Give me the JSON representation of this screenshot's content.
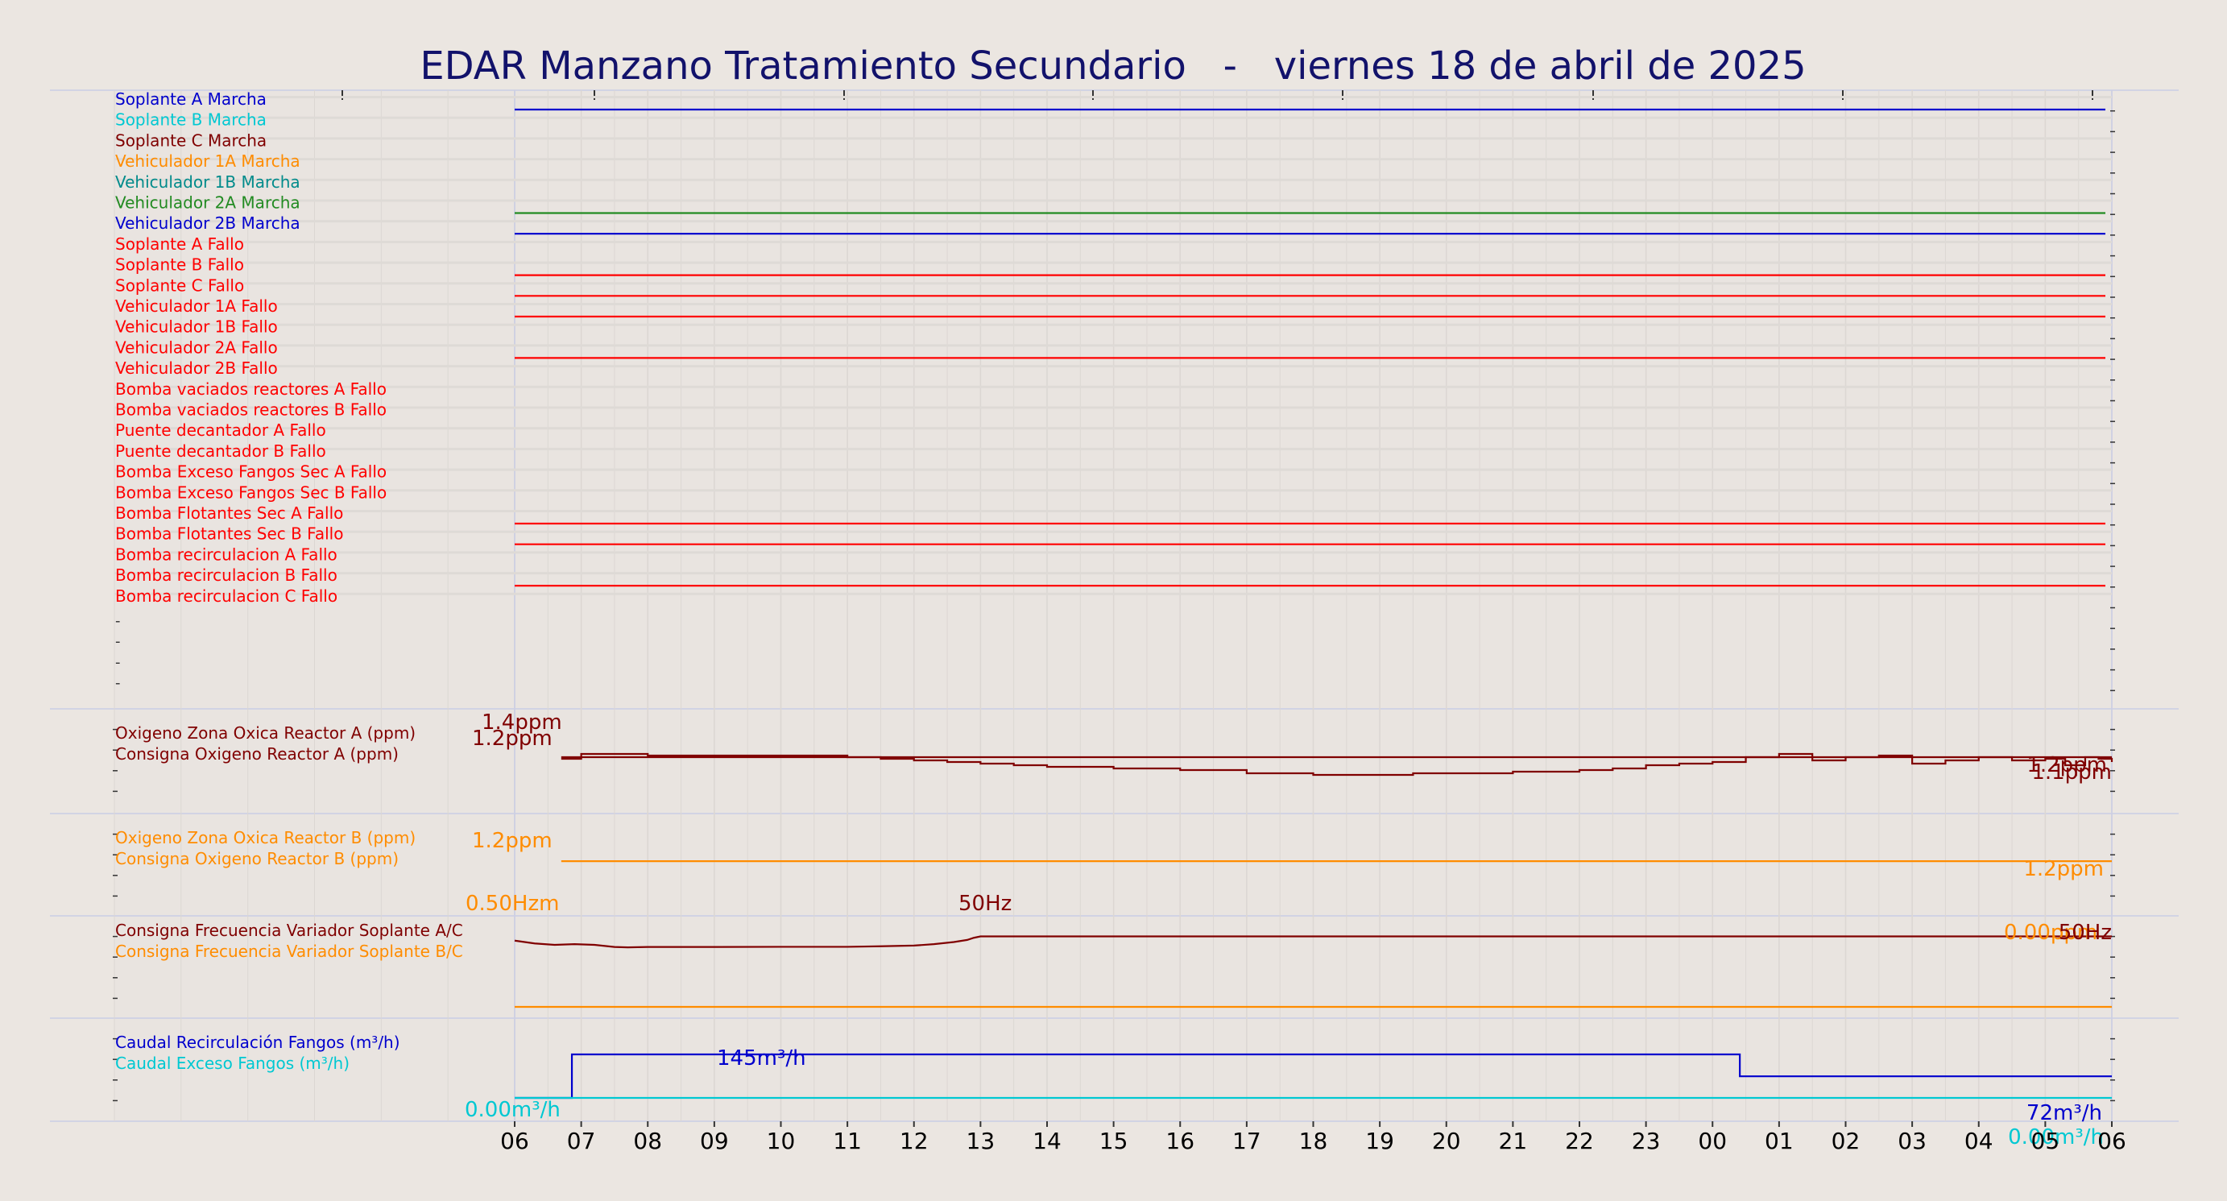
{
  "chart_data": {
    "type": "line",
    "title": "EDAR Manzano Tratamiento Secundario   -   viernes 18 de abril de 2025",
    "x_axis": {
      "start": "06:00",
      "end": "06:00 (+1 día)",
      "tick_labels": [
        "06",
        "07",
        "08",
        "09",
        "10",
        "11",
        "12",
        "13",
        "14",
        "15",
        "16",
        "17",
        "18",
        "19",
        "20",
        "21",
        "22",
        "23",
        "00",
        "01",
        "02",
        "03",
        "04",
        "05",
        "06"
      ]
    },
    "grid": true,
    "colors": {
      "background": "#ebe6e1",
      "title": "#12126b",
      "blue": "#0000cd",
      "cyan": "#00c8d2",
      "maroon": "#800000",
      "orange": "#ff8c00",
      "teal": "#008b8b",
      "green": "#228b22",
      "red": "#ff0000"
    },
    "panels": [
      {
        "id": "digital",
        "series": [
          {
            "name": "Soplante A Marcha",
            "color": "#0000cd",
            "active_from_hour": 0
          },
          {
            "name": "Soplante B Marcha",
            "color": "#00c8d2",
            "active_from_hour": null
          },
          {
            "name": "Soplante C Marcha",
            "color": "#800000",
            "active_from_hour": null
          },
          {
            "name": "Vehiculador 1A Marcha",
            "color": "#ff8c00",
            "active_from_hour": null
          },
          {
            "name": "Vehiculador 1B Marcha",
            "color": "#008b8b",
            "active_from_hour": null
          },
          {
            "name": "Vehiculador 2A Marcha",
            "color": "#228b22",
            "active_from_hour": 0
          },
          {
            "name": "Vehiculador 2B Marcha",
            "color": "#0000cd",
            "active_from_hour": 0
          },
          {
            "name": "Soplante A Fallo",
            "color": "#ff0000",
            "active_from_hour": null
          },
          {
            "name": "Soplante B Fallo",
            "color": "#ff0000",
            "active_from_hour": 0
          },
          {
            "name": "Soplante C Fallo",
            "color": "#ff0000",
            "active_from_hour": 0
          },
          {
            "name": "Vehiculador 1A Fallo",
            "color": "#ff0000",
            "active_from_hour": 0
          },
          {
            "name": "Vehiculador 1B Fallo",
            "color": "#ff0000",
            "active_from_hour": null
          },
          {
            "name": "Vehiculador 2A Fallo",
            "color": "#ff0000",
            "active_from_hour": 0
          },
          {
            "name": "Vehiculador 2B Fallo",
            "color": "#ff0000",
            "active_from_hour": null
          },
          {
            "name": "Bomba vaciados reactores A Fallo",
            "color": "#ff0000",
            "active_from_hour": null
          },
          {
            "name": "Bomba vaciados reactores B Fallo",
            "color": "#ff0000",
            "active_from_hour": null
          },
          {
            "name": "Puente decantador A Fallo",
            "color": "#ff0000",
            "active_from_hour": null
          },
          {
            "name": "Puente decantador B Fallo",
            "color": "#ff0000",
            "active_from_hour": null
          },
          {
            "name": "Bomba Exceso Fangos Sec A Fallo",
            "color": "#ff0000",
            "active_from_hour": null
          },
          {
            "name": "Bomba Exceso Fangos Sec B Fallo",
            "color": "#ff0000",
            "active_from_hour": null
          },
          {
            "name": "Bomba Flotantes Sec A Fallo",
            "color": "#ff0000",
            "active_from_hour": 0
          },
          {
            "name": "Bomba Flotantes Sec B Fallo",
            "color": "#ff0000",
            "active_from_hour": 0
          },
          {
            "name": "Bomba recirculacion A Fallo",
            "color": "#ff0000",
            "active_from_hour": null
          },
          {
            "name": "Bomba recirculacion B Fallo",
            "color": "#ff0000",
            "active_from_hour": 0
          },
          {
            "name": "Bomba recirculacion C Fallo",
            "color": "#ff0000",
            "active_from_hour": null
          }
        ]
      },
      {
        "id": "oxygen-a",
        "ylim": [
          0.9,
          1.45
        ],
        "labels": [
          "1.4ppm",
          "1.2ppm",
          "1.2ppm",
          "1.1ppm"
        ],
        "series": [
          {
            "name": "Oxigeno Zona Oxica Reactor A (ppm)",
            "color": "#800000",
            "step": true,
            "x": [
              0.7,
              1,
              2,
              2.5,
              3,
              4,
              5,
              5.5,
              6,
              6.5,
              7,
              7.5,
              8,
              8.5,
              9,
              9.5,
              10,
              10.5,
              11,
              11.5,
              12,
              12.5,
              13,
              13.5,
              14,
              14.5,
              15,
              15.5,
              16,
              16.5,
              17,
              17.5,
              18,
              18.5,
              19,
              19.5,
              20,
              20.5,
              21,
              21.5,
              22,
              22.5,
              23,
              23.3,
              23.6,
              23.8,
              24
            ],
            "y": [
              1.19,
              1.22,
              1.21,
              1.21,
              1.21,
              1.21,
              1.2,
              1.19,
              1.18,
              1.17,
              1.16,
              1.15,
              1.14,
              1.14,
              1.13,
              1.13,
              1.12,
              1.12,
              1.1,
              1.1,
              1.09,
              1.09,
              1.09,
              1.1,
              1.1,
              1.1,
              1.11,
              1.11,
              1.12,
              1.13,
              1.15,
              1.16,
              1.17,
              1.2,
              1.22,
              1.18,
              1.2,
              1.21,
              1.16,
              1.18,
              1.2,
              1.18,
              1.19,
              1.15,
              1.2,
              1.19,
              1.17
            ]
          },
          {
            "name": "Consigna Oxigeno Reactor A (ppm)",
            "color": "#800000",
            "step": true,
            "x": [
              0.7,
              24
            ],
            "y": [
              1.2,
              1.2
            ]
          }
        ]
      },
      {
        "id": "oxygen-b",
        "ylim": [
          0.9,
          1.45
        ],
        "labels": [
          "1.2ppm",
          "1.2ppm"
        ],
        "series": [
          {
            "name": "Oxigeno Zona Oxica Reactor B (ppm)",
            "color": "#ff8c00",
            "step": true,
            "x": [],
            "y": []
          },
          {
            "name": "Consigna Oxigeno Reactor B (ppm)",
            "color": "#ff8c00",
            "step": true,
            "x": [
              0.7,
              24
            ],
            "y": [
              1.2,
              1.2
            ]
          }
        ]
      },
      {
        "id": "frequency",
        "ylim": [
          0,
          60
        ],
        "labels": [
          "0.50Hzm",
          "50Hz",
          "0.00ppm",
          "50Hz"
        ],
        "series": [
          {
            "name": "Consigna Frecuencia Variador Soplante A/C",
            "color": "#800000",
            "step": false,
            "x": [
              0,
              0.3,
              0.6,
              0.9,
              1.2,
              1.5,
              1.7,
              2,
              3,
              4,
              5,
              5.5,
              6,
              6.3,
              6.6,
              6.8,
              6.9,
              7,
              24
            ],
            "y": [
              47,
              45,
              44,
              44.5,
              44,
              42.5,
              42.2,
              42.5,
              42.5,
              42.6,
              42.6,
              43,
              43.5,
              44.5,
              46,
              47.5,
              49,
              50,
              50
            ]
          },
          {
            "name": "Consigna Frecuencia Variador Soplante B/C",
            "color": "#ff8c00",
            "step": false,
            "x": [
              0,
              23.3,
              24
            ],
            "y": [
              0,
              0,
              0
            ]
          }
        ]
      },
      {
        "id": "flow",
        "ylim": [
          0,
          180
        ],
        "labels": [
          "145m³/h",
          "0.00m³/h",
          "72m³/h",
          "0.00m³/h"
        ],
        "series": [
          {
            "name": "Caudal Recirculación Fangos (m³/h)",
            "color": "#0000cd",
            "step": true,
            "x": [
              0,
              0.85,
              0.86,
              18.4,
              18.41,
              24
            ],
            "y": [
              0,
              0,
              145,
              145,
              72,
              72
            ]
          },
          {
            "name": "Caudal Exceso Fangos (m³/h)",
            "color": "#00c8d2",
            "step": true,
            "x": [
              0,
              24
            ],
            "y": [
              0,
              0
            ]
          }
        ]
      }
    ]
  }
}
